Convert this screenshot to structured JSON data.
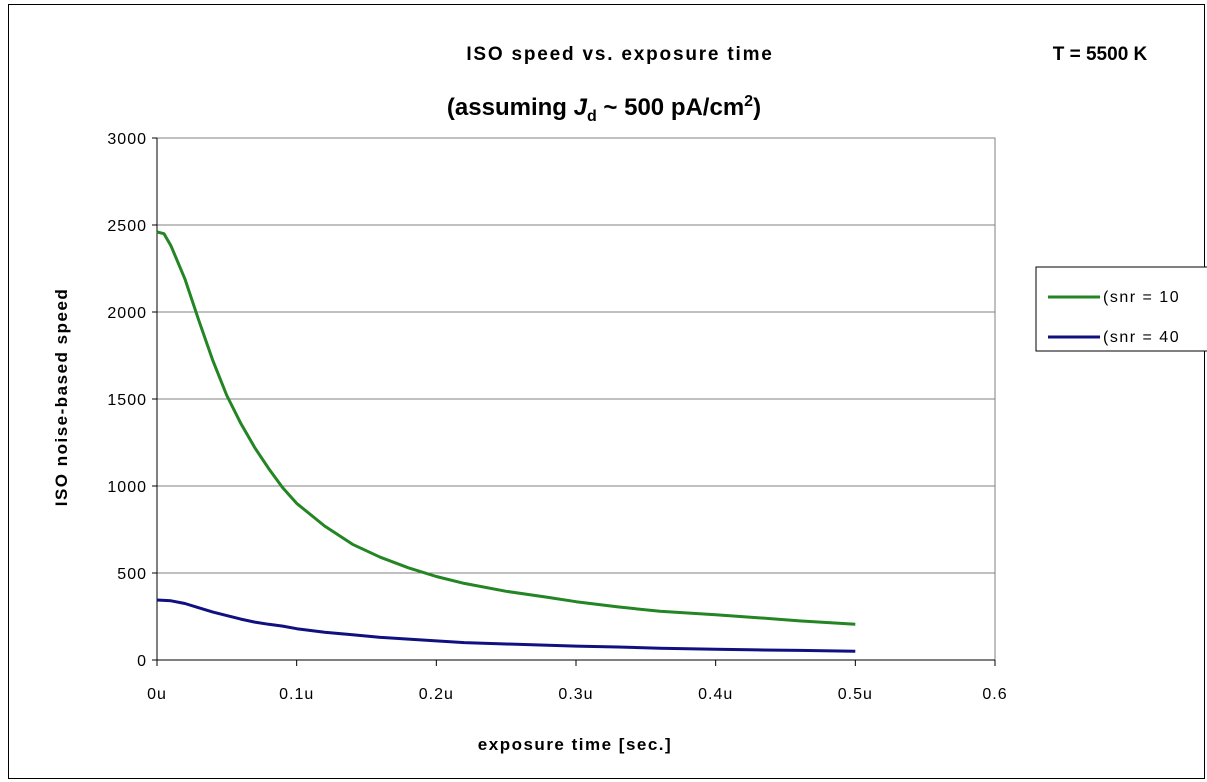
{
  "chart_data": {
    "type": "line",
    "title": "ISO speed vs. exposure time",
    "subtitle": {
      "prefix": "(assuming ",
      "symbol": "J",
      "symbol_sub": "d",
      "middle": " ~ 500 pA/cm",
      "sup": "2",
      "suffix": ")"
    },
    "annotation": "T = 5500 K",
    "xlabel": "exposure time [sec.]",
    "ylabel": "ISO noise-based speed",
    "xlim": [
      0,
      0.6
    ],
    "ylim": [
      0,
      3000
    ],
    "x_ticks": [
      0,
      0.1,
      0.2,
      0.3,
      0.4,
      0.5,
      0.6
    ],
    "x_tick_labels": [
      "0u",
      "0.1u",
      "0.2u",
      "0.3u",
      "0.4u",
      "0.5u",
      "0.6"
    ],
    "y_ticks": [
      0,
      500,
      1000,
      1500,
      2000,
      2500,
      3000
    ],
    "y_tick_labels": [
      "0",
      "500",
      "1000",
      "1500",
      "2000",
      "2500",
      "3000"
    ],
    "grid": "horizontal",
    "legend_position": "right",
    "series": [
      {
        "name": "(snr = 10",
        "color": "#238523",
        "x": [
          0,
          0.005,
          0.01,
          0.02,
          0.03,
          0.04,
          0.05,
          0.06,
          0.07,
          0.08,
          0.09,
          0.1,
          0.12,
          0.14,
          0.16,
          0.18,
          0.2,
          0.22,
          0.25,
          0.28,
          0.3,
          0.33,
          0.36,
          0.4,
          0.43,
          0.46,
          0.5
        ],
        "y": [
          2460,
          2450,
          2380,
          2190,
          1950,
          1720,
          1520,
          1360,
          1220,
          1100,
          990,
          900,
          770,
          665,
          590,
          530,
          480,
          440,
          395,
          360,
          335,
          305,
          280,
          260,
          243,
          225,
          205
        ]
      },
      {
        "name": "(snr = 40",
        "color": "#101080",
        "x": [
          0,
          0.01,
          0.02,
          0.03,
          0.04,
          0.05,
          0.06,
          0.07,
          0.08,
          0.09,
          0.1,
          0.12,
          0.14,
          0.16,
          0.18,
          0.2,
          0.22,
          0.25,
          0.28,
          0.3,
          0.33,
          0.36,
          0.4,
          0.43,
          0.46,
          0.5
        ],
        "y": [
          345,
          340,
          325,
          300,
          275,
          255,
          235,
          218,
          205,
          195,
          180,
          160,
          145,
          130,
          120,
          110,
          100,
          92,
          85,
          80,
          75,
          68,
          62,
          58,
          55,
          50
        ]
      }
    ]
  }
}
